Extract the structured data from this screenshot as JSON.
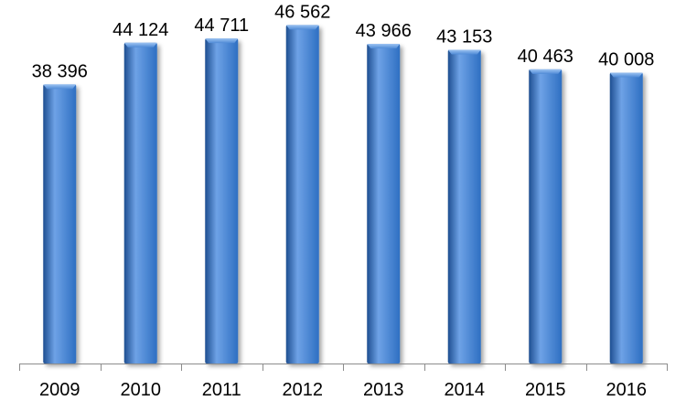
{
  "chart_data": {
    "type": "bar",
    "categories": [
      "2009",
      "2010",
      "2011",
      "2012",
      "2013",
      "2014",
      "2015",
      "2016"
    ],
    "values": [
      38396,
      44124,
      44711,
      46562,
      43966,
      43153,
      40463,
      40008
    ],
    "value_labels": [
      "38 396",
      "44 124",
      "44 711",
      "46 562",
      "43 966",
      "43 153",
      "40 463",
      "40 008"
    ],
    "title": "",
    "xlabel": "",
    "ylabel": "",
    "ylim": [
      0,
      50000
    ],
    "grid": false,
    "legend": "none",
    "bar_color": "#2e6fc2",
    "bar_highlight_color": "#6ea2e6",
    "bar_shadow_color": "#1d4e91"
  }
}
